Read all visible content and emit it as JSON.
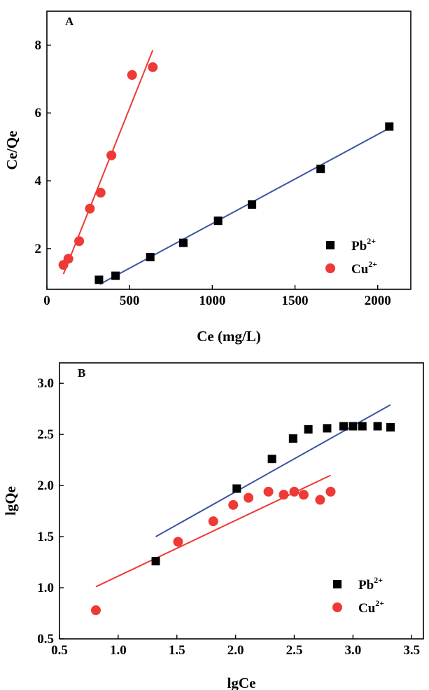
{
  "chart_data": [
    {
      "type": "scatter",
      "panel_label": "A",
      "xlabel": "Ce (mg/L)",
      "ylabel": "Ce/Qe",
      "xlim": [
        0,
        2200
      ],
      "ylim": [
        0.8,
        9.0
      ],
      "xticks": [
        0,
        500,
        1000,
        1500,
        2000
      ],
      "yticks": [
        2,
        4,
        6,
        8
      ],
      "legend_position": "bottom-right",
      "series": [
        {
          "name": "Pb",
          "sup": "2+",
          "marker": "square",
          "color": "#000000",
          "points": [
            [
              315,
              1.08
            ],
            [
              415,
              1.2
            ],
            [
              625,
              1.75
            ],
            [
              825,
              2.17
            ],
            [
              1035,
              2.82
            ],
            [
              1240,
              3.3
            ],
            [
              1655,
              4.35
            ],
            [
              2070,
              5.6
            ]
          ],
          "fit": {
            "color": "#3b53a4",
            "x": [
              320,
              2070
            ],
            "y": [
              0.95,
              5.55
            ]
          }
        },
        {
          "name": "Cu",
          "sup": "2+",
          "marker": "circle",
          "color": "#ee3a36",
          "points": [
            [
              100,
              1.52
            ],
            [
              130,
              1.7
            ],
            [
              195,
              2.22
            ],
            [
              260,
              3.18
            ],
            [
              325,
              3.65
            ],
            [
              390,
              4.75
            ],
            [
              515,
              7.12
            ],
            [
              640,
              7.35
            ]
          ],
          "fit": {
            "color": "#ee3a36",
            "x": [
              100,
              640
            ],
            "y": [
              1.25,
              7.85
            ]
          }
        }
      ]
    },
    {
      "type": "scatter",
      "panel_label": "B",
      "xlabel": "lgCe",
      "ylabel": "lgQe",
      "xlim": [
        0.5,
        3.6
      ],
      "ylim": [
        0.5,
        3.2
      ],
      "xticks": [
        "0.5",
        "1.0",
        "1.5",
        "2.0",
        "2.5",
        "3.0",
        "3.5"
      ],
      "yticks": [
        "0.5",
        "1.0",
        "1.5",
        "2.0",
        "2.5",
        "3.0"
      ],
      "legend_position": "bottom-right",
      "series": [
        {
          "name": "Pb",
          "sup": "2+",
          "marker": "square",
          "color": "#000000",
          "points": [
            [
              1.32,
              1.26
            ],
            [
              2.01,
              1.97
            ],
            [
              2.31,
              2.26
            ],
            [
              2.49,
              2.46
            ],
            [
              2.62,
              2.55
            ],
            [
              2.78,
              2.56
            ],
            [
              2.92,
              2.58
            ],
            [
              3.0,
              2.58
            ],
            [
              3.08,
              2.58
            ],
            [
              3.21,
              2.58
            ],
            [
              3.32,
              2.57
            ]
          ],
          "fit": {
            "color": "#3b53a4",
            "x": [
              1.32,
              3.32
            ],
            "y": [
              1.5,
              2.79
            ]
          }
        },
        {
          "name": "Cu",
          "sup": "2+",
          "marker": "circle",
          "color": "#ee3a36",
          "points": [
            [
              0.81,
              0.78
            ],
            [
              1.51,
              1.45
            ],
            [
              1.81,
              1.65
            ],
            [
              1.98,
              1.81
            ],
            [
              2.11,
              1.88
            ],
            [
              2.28,
              1.94
            ],
            [
              2.41,
              1.91
            ],
            [
              2.5,
              1.94
            ],
            [
              2.58,
              1.91
            ],
            [
              2.72,
              1.86
            ],
            [
              2.81,
              1.94
            ]
          ],
          "fit": {
            "color": "#ee3a36",
            "x": [
              0.81,
              2.81
            ],
            "y": [
              1.01,
              2.1
            ]
          }
        }
      ]
    }
  ]
}
